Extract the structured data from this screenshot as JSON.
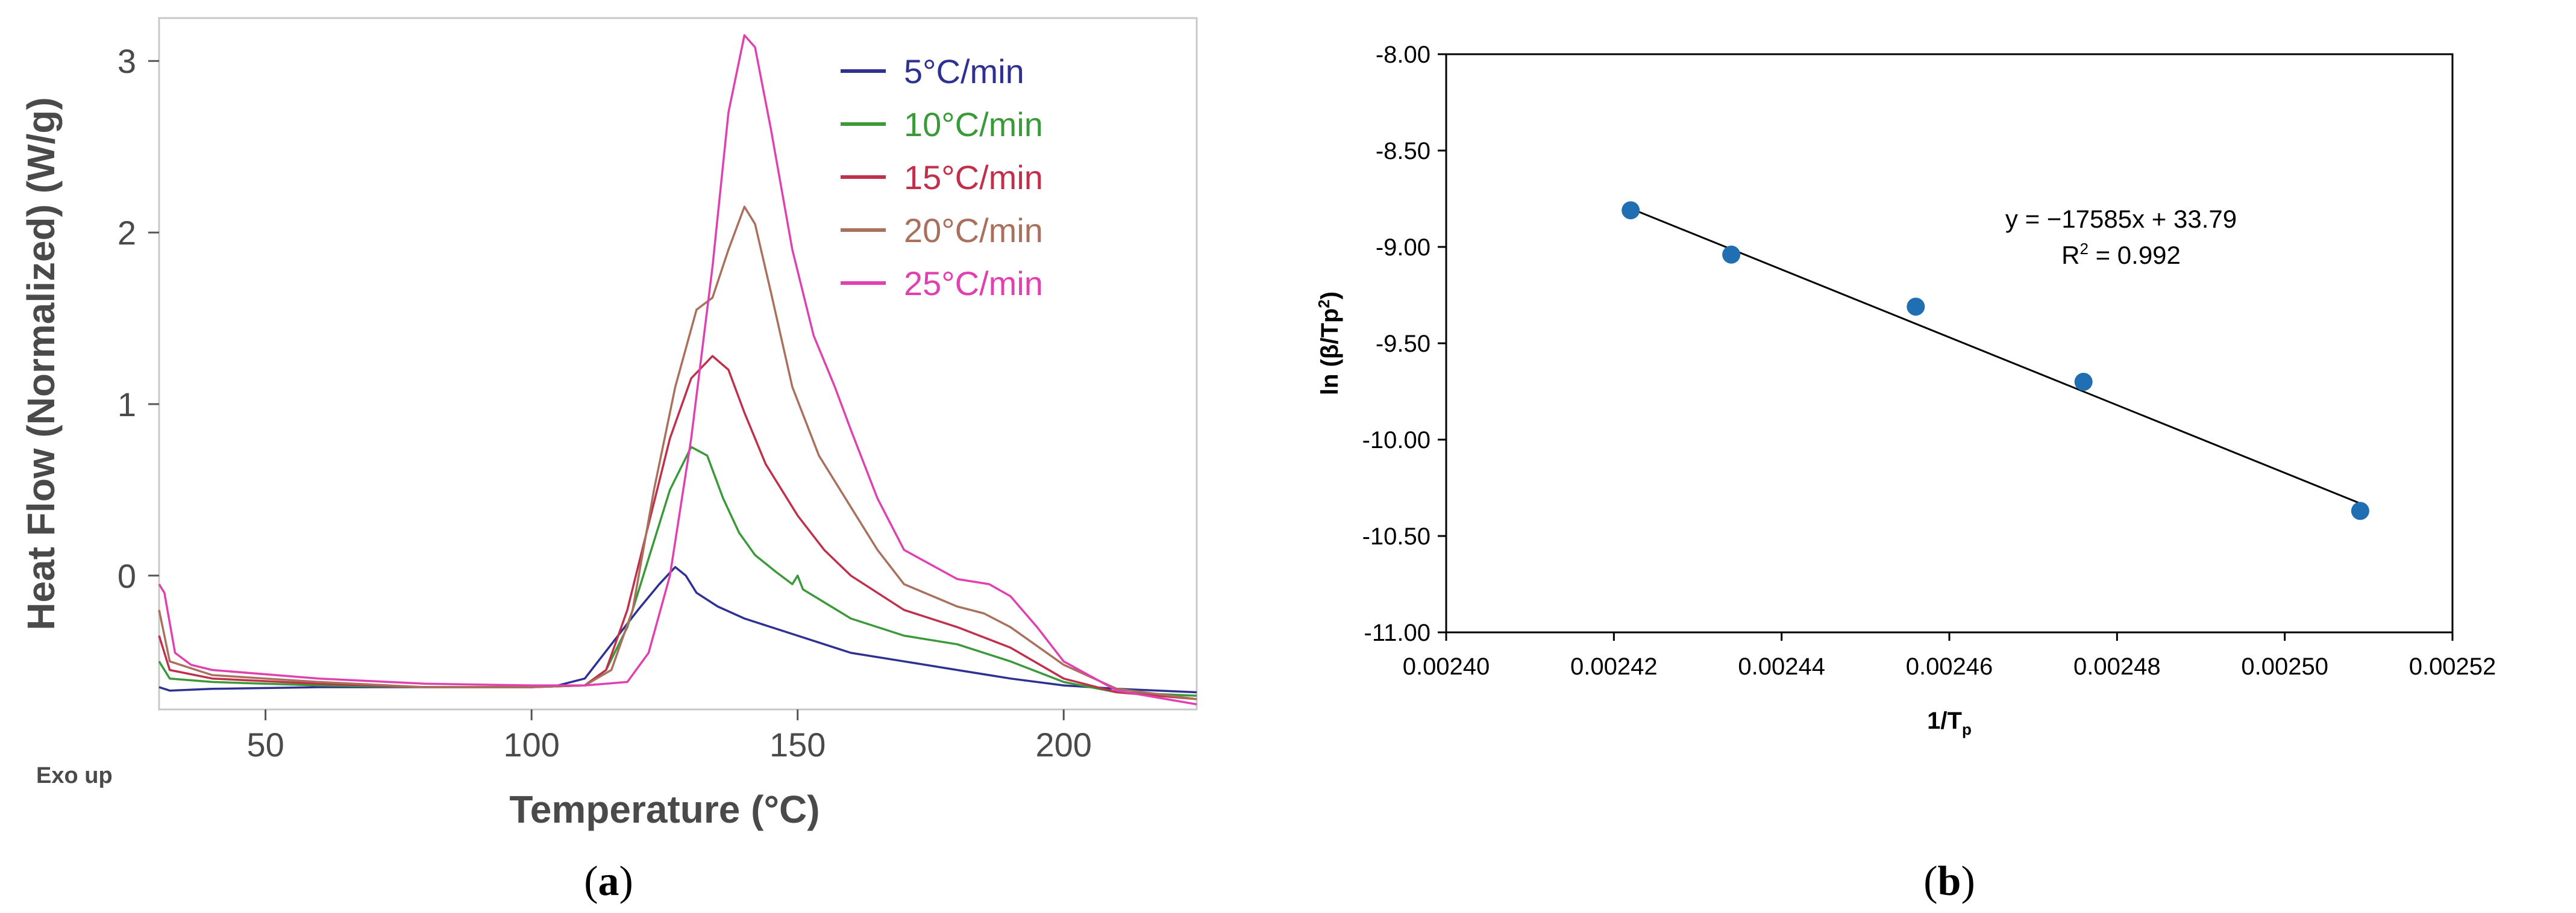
{
  "chart_data": [
    {
      "type": "line",
      "panel_label_open": "(",
      "panel_label_letter": "a",
      "panel_label_close": ")",
      "xlabel": "Temperature (°C)",
      "ylabel": "Heat Flow (Normalized) (W/g)",
      "corner_note": "Exo up",
      "xlim": [
        30,
        225
      ],
      "ylim": [
        -0.78,
        3.25
      ],
      "x_ticks": [
        50,
        100,
        150,
        200
      ],
      "y_ticks": [
        0,
        1,
        2,
        3
      ],
      "grid": false,
      "legend_position": "top-right",
      "series": [
        {
          "name": "5°C/min",
          "color": "#2e3192",
          "points": [
            [
              30,
              -0.65
            ],
            [
              32,
              -0.67
            ],
            [
              40,
              -0.66
            ],
            [
              60,
              -0.65
            ],
            [
              80,
              -0.65
            ],
            [
              100,
              -0.65
            ],
            [
              105,
              -0.64
            ],
            [
              110,
              -0.6
            ],
            [
              115,
              -0.4
            ],
            [
              120,
              -0.2
            ],
            [
              124,
              -0.05
            ],
            [
              127,
              0.05
            ],
            [
              129,
              0.0
            ],
            [
              131,
              -0.1
            ],
            [
              135,
              -0.18
            ],
            [
              140,
              -0.25
            ],
            [
              150,
              -0.35
            ],
            [
              160,
              -0.45
            ],
            [
              170,
              -0.5
            ],
            [
              180,
              -0.55
            ],
            [
              190,
              -0.6
            ],
            [
              200,
              -0.64
            ],
            [
              210,
              -0.66
            ],
            [
              225,
              -0.68
            ]
          ]
        },
        {
          "name": "10°C/min",
          "color": "#3a9a3a",
          "points": [
            [
              30,
              -0.5
            ],
            [
              32,
              -0.6
            ],
            [
              40,
              -0.62
            ],
            [
              60,
              -0.64
            ],
            [
              80,
              -0.65
            ],
            [
              100,
              -0.65
            ],
            [
              110,
              -0.64
            ],
            [
              114,
              -0.55
            ],
            [
              118,
              -0.3
            ],
            [
              122,
              0.1
            ],
            [
              126,
              0.5
            ],
            [
              130,
              0.75
            ],
            [
              133,
              0.7
            ],
            [
              136,
              0.45
            ],
            [
              139,
              0.25
            ],
            [
              142,
              0.12
            ],
            [
              146,
              0.02
            ],
            [
              149,
              -0.05
            ],
            [
              150,
              0.0
            ],
            [
              151,
              -0.08
            ],
            [
              160,
              -0.25
            ],
            [
              170,
              -0.35
            ],
            [
              180,
              -0.4
            ],
            [
              190,
              -0.5
            ],
            [
              200,
              -0.62
            ],
            [
              210,
              -0.68
            ],
            [
              225,
              -0.7
            ]
          ]
        },
        {
          "name": "15°C/min",
          "color": "#c0304a",
          "points": [
            [
              30,
              -0.35
            ],
            [
              32,
              -0.55
            ],
            [
              40,
              -0.6
            ],
            [
              60,
              -0.63
            ],
            [
              80,
              -0.65
            ],
            [
              100,
              -0.65
            ],
            [
              110,
              -0.64
            ],
            [
              114,
              -0.55
            ],
            [
              118,
              -0.2
            ],
            [
              122,
              0.3
            ],
            [
              126,
              0.8
            ],
            [
              130,
              1.15
            ],
            [
              134,
              1.28
            ],
            [
              137,
              1.2
            ],
            [
              140,
              0.95
            ],
            [
              144,
              0.65
            ],
            [
              150,
              0.35
            ],
            [
              155,
              0.15
            ],
            [
              160,
              0.0
            ],
            [
              170,
              -0.2
            ],
            [
              180,
              -0.3
            ],
            [
              190,
              -0.42
            ],
            [
              200,
              -0.6
            ],
            [
              210,
              -0.68
            ],
            [
              225,
              -0.72
            ]
          ]
        },
        {
          "name": "20°C/min",
          "color": "#a9705e",
          "points": [
            [
              30,
              -0.2
            ],
            [
              32,
              -0.5
            ],
            [
              40,
              -0.58
            ],
            [
              60,
              -0.62
            ],
            [
              80,
              -0.65
            ],
            [
              100,
              -0.65
            ],
            [
              110,
              -0.64
            ],
            [
              115,
              -0.55
            ],
            [
              119,
              -0.2
            ],
            [
              123,
              0.5
            ],
            [
              127,
              1.1
            ],
            [
              131,
              1.55
            ],
            [
              134,
              1.62
            ],
            [
              137,
              1.9
            ],
            [
              140,
              2.15
            ],
            [
              142,
              2.05
            ],
            [
              145,
              1.65
            ],
            [
              149,
              1.1
            ],
            [
              154,
              0.7
            ],
            [
              160,
              0.4
            ],
            [
              165,
              0.15
            ],
            [
              170,
              -0.05
            ],
            [
              180,
              -0.18
            ],
            [
              185,
              -0.22
            ],
            [
              190,
              -0.3
            ],
            [
              200,
              -0.52
            ],
            [
              210,
              -0.66
            ],
            [
              225,
              -0.72
            ]
          ]
        },
        {
          "name": "25°C/min",
          "color": "#e040b0",
          "points": [
            [
              30,
              -0.05
            ],
            [
              31,
              -0.1
            ],
            [
              33,
              -0.45
            ],
            [
              36,
              -0.52
            ],
            [
              40,
              -0.55
            ],
            [
              60,
              -0.6
            ],
            [
              80,
              -0.63
            ],
            [
              100,
              -0.64
            ],
            [
              110,
              -0.64
            ],
            [
              118,
              -0.62
            ],
            [
              122,
              -0.45
            ],
            [
              126,
              0.0
            ],
            [
              130,
              0.8
            ],
            [
              134,
              1.8
            ],
            [
              137,
              2.7
            ],
            [
              140,
              3.15
            ],
            [
              142,
              3.08
            ],
            [
              145,
              2.6
            ],
            [
              149,
              1.9
            ],
            [
              153,
              1.4
            ],
            [
              157,
              1.1
            ],
            [
              160,
              0.85
            ],
            [
              165,
              0.45
            ],
            [
              170,
              0.15
            ],
            [
              180,
              -0.02
            ],
            [
              186,
              -0.05
            ],
            [
              190,
              -0.12
            ],
            [
              195,
              -0.3
            ],
            [
              200,
              -0.5
            ],
            [
              210,
              -0.67
            ],
            [
              225,
              -0.75
            ]
          ]
        }
      ]
    },
    {
      "type": "scatter",
      "panel_label_open": "(",
      "panel_label_letter": "b",
      "panel_label_close": ")",
      "xlabel_main": "1/T",
      "xlabel_sub": "p",
      "ylabel_main": "ln (β/Tp",
      "ylabel_sup": "2",
      "ylabel_end": ")",
      "xlim": [
        0.0024,
        0.00252
      ],
      "ylim": [
        -11.0,
        -8.0
      ],
      "x_ticks": [
        "0.00240",
        "0.00242",
        "0.00244",
        "0.00246",
        "0.00248",
        "0.00250",
        "0.00252"
      ],
      "y_ticks": [
        "-8.00",
        "-8.50",
        "-9.00",
        "-9.50",
        "-10.00",
        "-10.50",
        "-11.00"
      ],
      "grid": false,
      "point_color": "#1f6fb2",
      "points": [
        {
          "x": 0.002422,
          "y": -8.81
        },
        {
          "x": 0.002434,
          "y": -9.04
        },
        {
          "x": 0.002456,
          "y": -9.31
        },
        {
          "x": 0.002476,
          "y": -9.7
        },
        {
          "x": 0.002509,
          "y": -10.37
        }
      ],
      "trendline": {
        "slope": -17585,
        "intercept": 33.79,
        "x_start": 0.002422,
        "x_end": 0.002509
      },
      "equation_text": "y = −17585x + 33.79",
      "r2_main": "R",
      "r2_sup": "2",
      "r2_value": " = 0.992"
    }
  ]
}
